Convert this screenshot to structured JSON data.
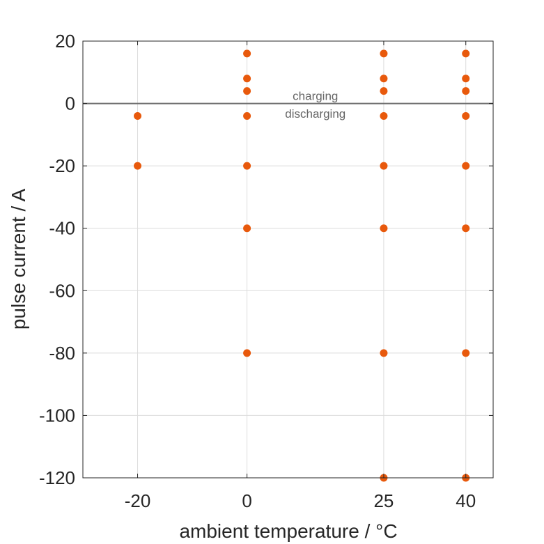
{
  "chart_data": {
    "type": "scatter",
    "title": "",
    "xlabel": "ambient temperature / °C",
    "ylabel": "pulse current / A",
    "xlim": [
      -30,
      45
    ],
    "ylim": [
      -120,
      20
    ],
    "xticks": [
      -20,
      0,
      25,
      40
    ],
    "yticks": [
      20,
      0,
      -20,
      -40,
      -60,
      -80,
      -100,
      -120
    ],
    "grid": true,
    "reference_line": {
      "y": 0,
      "color": "#6e6e6e"
    },
    "annotations": [
      {
        "text": "charging",
        "x": 12.5,
        "y": 2.5
      },
      {
        "text": "discharging",
        "x": 12.5,
        "y": -3.2
      }
    ],
    "marker_color": "#e8590c",
    "points": [
      {
        "x": -20,
        "y": -4
      },
      {
        "x": -20,
        "y": -20
      },
      {
        "x": 0,
        "y": 16
      },
      {
        "x": 0,
        "y": 8
      },
      {
        "x": 0,
        "y": 4
      },
      {
        "x": 0,
        "y": -4
      },
      {
        "x": 0,
        "y": -20
      },
      {
        "x": 0,
        "y": -40
      },
      {
        "x": 0,
        "y": -80
      },
      {
        "x": 25,
        "y": 16
      },
      {
        "x": 25,
        "y": 8
      },
      {
        "x": 25,
        "y": 4
      },
      {
        "x": 25,
        "y": -4
      },
      {
        "x": 25,
        "y": -20
      },
      {
        "x": 25,
        "y": -40
      },
      {
        "x": 25,
        "y": -80
      },
      {
        "x": 25,
        "y": -120
      },
      {
        "x": 40,
        "y": 16
      },
      {
        "x": 40,
        "y": 8
      },
      {
        "x": 40,
        "y": 4
      },
      {
        "x": 40,
        "y": -4
      },
      {
        "x": 40,
        "y": -20
      },
      {
        "x": 40,
        "y": -40
      },
      {
        "x": 40,
        "y": -80
      },
      {
        "x": 40,
        "y": -120
      }
    ]
  }
}
